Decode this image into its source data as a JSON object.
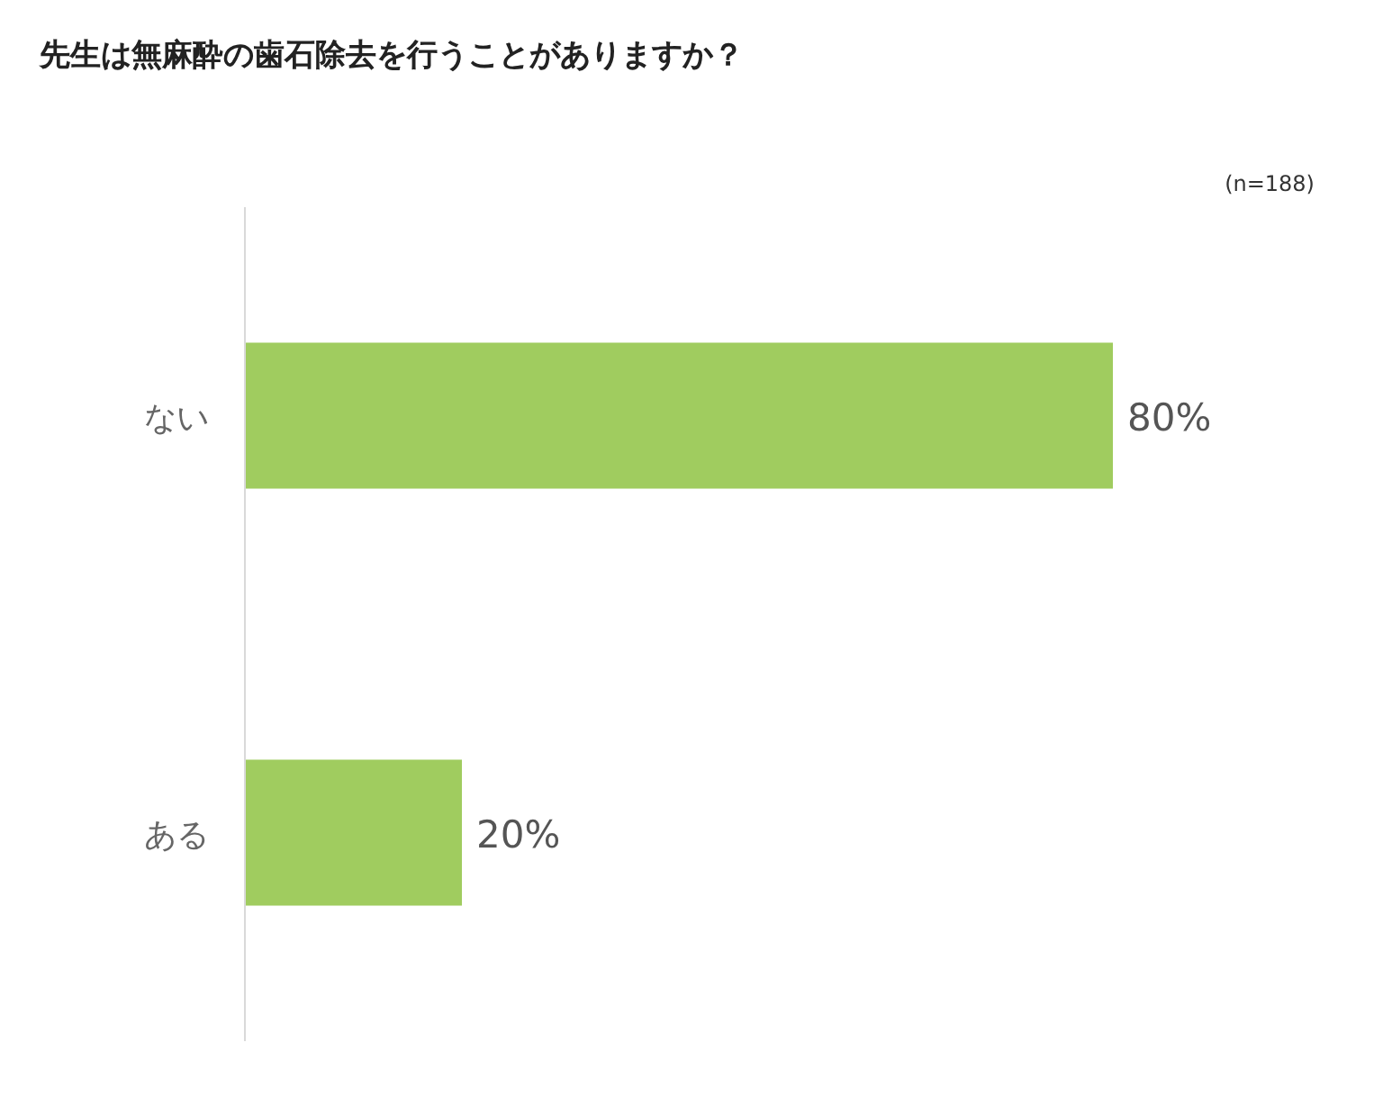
{
  "chart_data": {
    "type": "bar",
    "orientation": "horizontal",
    "title": "先生は無麻酔の歯石除去を行うことがありますか？",
    "annotations": [
      "(n=188)"
    ],
    "categories": [
      "ない",
      "ある"
    ],
    "values": [
      80,
      20
    ],
    "value_labels": [
      "80%",
      "20%"
    ],
    "color": "#a0cc5f"
  }
}
